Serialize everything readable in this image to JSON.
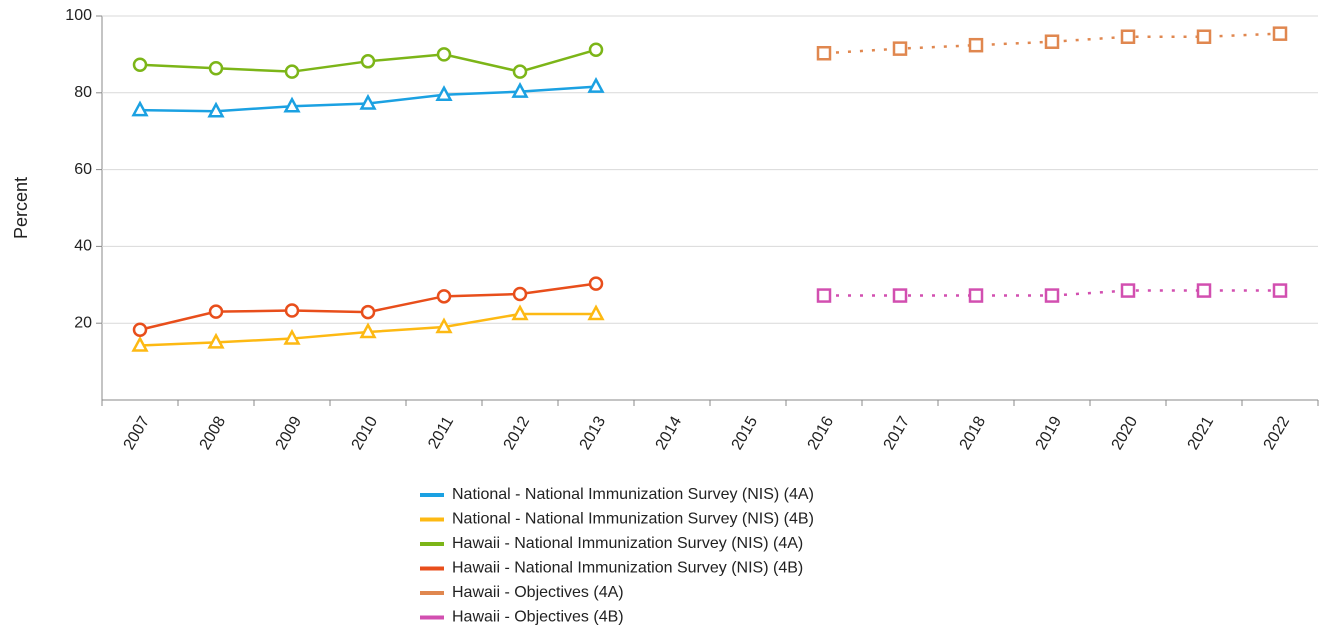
{
  "chart_data": {
    "type": "line",
    "y_label": "Percent",
    "categories": [
      "2007",
      "2008",
      "2009",
      "2010",
      "2011",
      "2012",
      "2013",
      "2014",
      "2015",
      "2016",
      "2017",
      "2018",
      "2019",
      "2020",
      "2021",
      "2022"
    ],
    "ylim": [
      0,
      100
    ],
    "yticks": [
      20,
      40,
      60,
      80,
      100
    ],
    "grid": true,
    "series": [
      {
        "name": "National - National Immunization Survey (NIS) (4A)",
        "color": "#1ba1e2",
        "marker": "triangle",
        "dotted": false,
        "values": [
          75.5,
          75.2,
          76.5,
          77.2,
          79.5,
          80.3,
          81.6,
          null,
          null,
          null,
          null,
          null,
          null,
          null,
          null,
          null
        ]
      },
      {
        "name": "National - National Immunization Survey (NIS) (4B)",
        "color": "#fdb913",
        "marker": "triangle",
        "dotted": false,
        "values": [
          14.2,
          15.0,
          16.0,
          17.7,
          19.0,
          22.4,
          22.4,
          null,
          null,
          null,
          null,
          null,
          null,
          null,
          null,
          null
        ]
      },
      {
        "name": "Hawaii - National Immunization Survey (NIS) (4A)",
        "color": "#7cb518",
        "marker": "circle",
        "dotted": false,
        "values": [
          87.3,
          86.4,
          85.5,
          88.2,
          90.0,
          85.5,
          91.2,
          null,
          null,
          null,
          null,
          null,
          null,
          null,
          null,
          null
        ]
      },
      {
        "name": "Hawaii - National Immunization Survey (NIS) (4B)",
        "color": "#e84e1b",
        "marker": "circle",
        "dotted": false,
        "values": [
          18.3,
          23.0,
          23.3,
          22.9,
          27.0,
          27.6,
          30.3,
          null,
          null,
          null,
          null,
          null,
          null,
          null,
          null,
          null
        ]
      },
      {
        "name": "Hawaii - Objectives (4A)",
        "color": "#e0874f",
        "marker": "square",
        "dotted": true,
        "values": [
          null,
          null,
          null,
          null,
          null,
          null,
          null,
          null,
          null,
          90.3,
          91.5,
          92.4,
          93.3,
          94.6,
          94.6,
          95.4
        ]
      },
      {
        "name": "Hawaii - Objectives (4B)",
        "color": "#d24fb0",
        "marker": "square",
        "dotted": true,
        "values": [
          null,
          null,
          null,
          null,
          null,
          null,
          null,
          null,
          null,
          27.2,
          27.2,
          27.2,
          27.2,
          28.5,
          28.5,
          28.5
        ]
      }
    ]
  }
}
